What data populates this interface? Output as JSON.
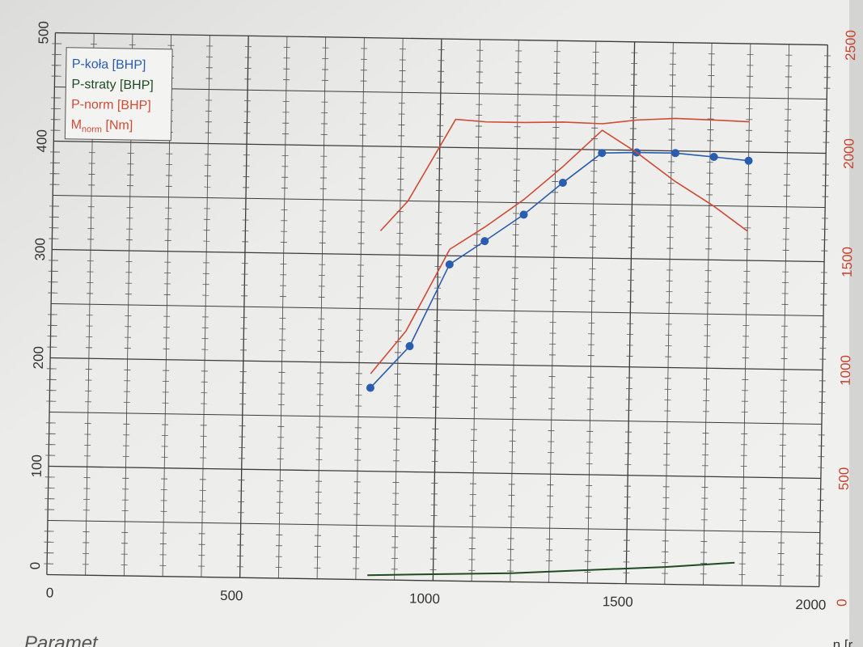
{
  "chart_data": {
    "type": "line",
    "x_axis": {
      "label": "n [r",
      "ticks": [
        0,
        500,
        1000,
        1500,
        2000
      ],
      "range": [
        0,
        2000
      ]
    },
    "y_left": {
      "ticks": [
        0,
        100,
        200,
        300,
        400,
        500
      ],
      "range": [
        0,
        500
      ]
    },
    "y_right": {
      "ticks": [
        0,
        500,
        1000,
        1500,
        2000,
        2500
      ],
      "range": [
        0,
        2500
      ]
    },
    "grid": true,
    "legend": {
      "placement": "top-left",
      "entries": [
        {
          "text": "P-koła [BHP]",
          "color": "#2a5db0"
        },
        {
          "text": "P-straty [BHP]",
          "color": "#1f4a22"
        },
        {
          "text": "P-norm [BHP]",
          "color": "#d14a36"
        },
        {
          "text": "M",
          "sub": "norm",
          "suffix": " [Nm]",
          "color": "#d14a36"
        }
      ]
    },
    "series": [
      {
        "name": "P-koła [BHP]",
        "axis": "left",
        "color": "#2a5db0",
        "markers": true,
        "x": [
          830,
          930,
          1030,
          1120,
          1220,
          1320,
          1420,
          1510,
          1610,
          1710,
          1800
        ],
        "y": [
          177,
          216,
          292,
          314,
          339,
          369,
          397,
          398,
          398,
          395,
          392
        ]
      },
      {
        "name": "P-straty [BHP]",
        "axis": "left",
        "color": "#1f4a22",
        "markers": false,
        "x": [
          830,
          1000,
          1200,
          1400,
          1600,
          1780
        ],
        "y": [
          4,
          6,
          8,
          12,
          16,
          21
        ]
      },
      {
        "name": "P-norm [BHP]",
        "axis": "left",
        "color": "#d14a36",
        "markers": false,
        "x": [
          830,
          920,
          1030,
          1120,
          1220,
          1320,
          1420,
          1510,
          1610,
          1710,
          1800
        ],
        "y": [
          190,
          230,
          306,
          327,
          353,
          384,
          418,
          398,
          372,
          350,
          327
        ]
      },
      {
        "name": "M norm [Nm]",
        "axis": "right",
        "color": "#d14a36",
        "markers": false,
        "x": [
          850,
          920,
          1040,
          1120,
          1220,
          1320,
          1420,
          1510,
          1610,
          1710,
          1800
        ],
        "y": [
          1610,
          1750,
          2130,
          2120,
          2120,
          2125,
          2120,
          2140,
          2150,
          2145,
          2140
        ]
      }
    ]
  },
  "footer": {
    "text": "Paramet"
  }
}
